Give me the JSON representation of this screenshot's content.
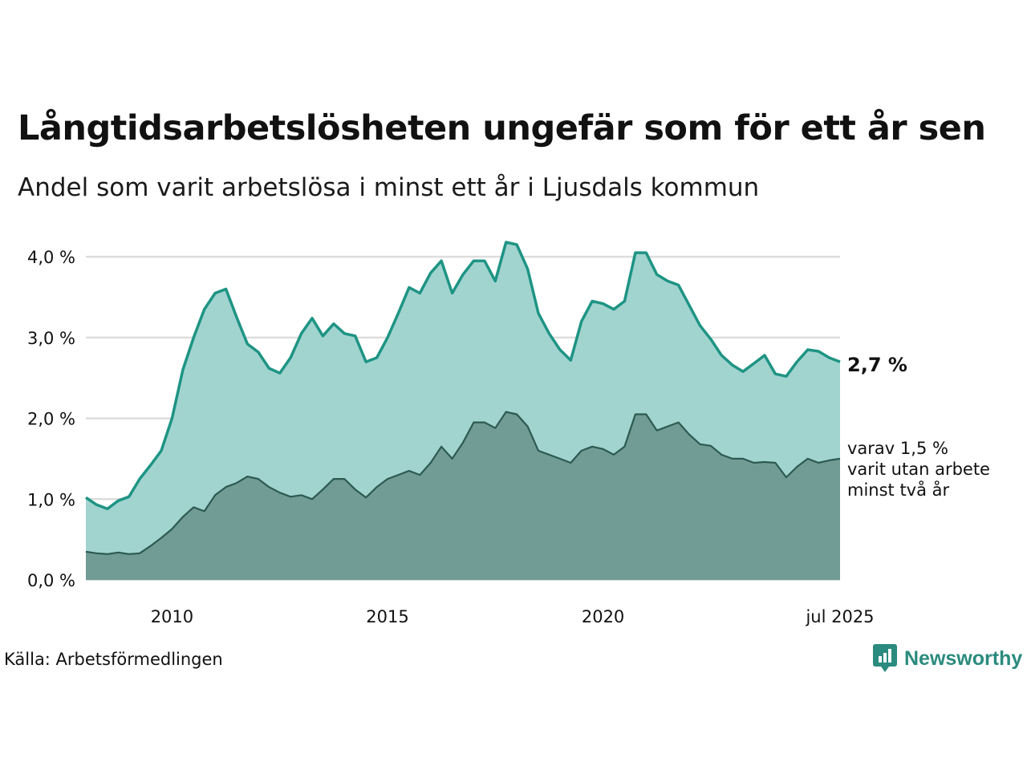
{
  "title": "Långtidsarbetslösheten ungefär som för ett år sen",
  "subtitle": "Andel som varit arbetslösa i minst ett år i Ljusdals kommun",
  "source": "Källa: Arbetsförmedlingen",
  "brand": "Newsworthy",
  "colors": {
    "total_line": "#1e9484",
    "total_fill": "#a2d4cf",
    "sub_line": "#2c5a52",
    "sub_fill": "#719c96",
    "grid": "#dddddd"
  },
  "chart_data": {
    "type": "area",
    "ylim": [
      0,
      4.2
    ],
    "yticks": [
      "0,0 %",
      "1,0 %",
      "2,0 %",
      "3,0 %",
      "4,0 %"
    ],
    "xticks": [
      "2010",
      "2015",
      "2020",
      "jul 2025"
    ],
    "total_label": "2,7 %",
    "sub_label": [
      "varav 1,5 %",
      "varit utan arbete",
      "minst två år"
    ],
    "series": [
      {
        "key": "total",
        "points": [
          [
            "2008-01",
            1.02
          ],
          [
            "2008-04",
            0.93
          ],
          [
            "2008-07",
            0.88
          ],
          [
            "2008-10",
            0.98
          ],
          [
            "2009-01",
            1.03
          ],
          [
            "2009-04",
            1.25
          ],
          [
            "2009-07",
            1.42
          ],
          [
            "2009-10",
            1.6
          ],
          [
            "2010-01",
            2.0
          ],
          [
            "2010-04",
            2.6
          ],
          [
            "2010-07",
            3.0
          ],
          [
            "2010-10",
            3.35
          ],
          [
            "2011-01",
            3.55
          ],
          [
            "2011-04",
            3.6
          ],
          [
            "2011-07",
            3.25
          ],
          [
            "2011-10",
            2.92
          ],
          [
            "2012-01",
            2.82
          ],
          [
            "2012-04",
            2.62
          ],
          [
            "2012-07",
            2.56
          ],
          [
            "2012-10",
            2.75
          ],
          [
            "2013-01",
            3.05
          ],
          [
            "2013-04",
            3.24
          ],
          [
            "2013-07",
            3.02
          ],
          [
            "2013-10",
            3.17
          ],
          [
            "2014-01",
            3.05
          ],
          [
            "2014-04",
            3.02
          ],
          [
            "2014-07",
            2.7
          ],
          [
            "2014-10",
            2.75
          ],
          [
            "2015-01",
            3.0
          ],
          [
            "2015-04",
            3.3
          ],
          [
            "2015-07",
            3.62
          ],
          [
            "2015-10",
            3.55
          ],
          [
            "2016-01",
            3.8
          ],
          [
            "2016-04",
            3.95
          ],
          [
            "2016-07",
            3.55
          ],
          [
            "2016-10",
            3.78
          ],
          [
            "2017-01",
            3.95
          ],
          [
            "2017-04",
            3.95
          ],
          [
            "2017-07",
            3.7
          ],
          [
            "2017-10",
            4.18
          ],
          [
            "2018-01",
            4.15
          ],
          [
            "2018-04",
            3.85
          ],
          [
            "2018-07",
            3.3
          ],
          [
            "2018-10",
            3.05
          ],
          [
            "2019-01",
            2.85
          ],
          [
            "2019-04",
            2.72
          ],
          [
            "2019-07",
            3.2
          ],
          [
            "2019-10",
            3.45
          ],
          [
            "2020-01",
            3.42
          ],
          [
            "2020-04",
            3.35
          ],
          [
            "2020-07",
            3.45
          ],
          [
            "2020-10",
            4.05
          ],
          [
            "2021-01",
            4.05
          ],
          [
            "2021-04",
            3.78
          ],
          [
            "2021-07",
            3.7
          ],
          [
            "2021-10",
            3.65
          ],
          [
            "2022-01",
            3.4
          ],
          [
            "2022-04",
            3.15
          ],
          [
            "2022-07",
            2.98
          ],
          [
            "2022-10",
            2.78
          ],
          [
            "2023-01",
            2.66
          ],
          [
            "2023-04",
            2.58
          ],
          [
            "2023-07",
            2.68
          ],
          [
            "2023-10",
            2.78
          ],
          [
            "2024-01",
            2.55
          ],
          [
            "2024-04",
            2.52
          ],
          [
            "2024-07",
            2.7
          ],
          [
            "2024-10",
            2.85
          ],
          [
            "2025-01",
            2.83
          ],
          [
            "2025-04",
            2.75
          ],
          [
            "2025-07",
            2.7
          ]
        ]
      },
      {
        "key": "sub",
        "points": [
          [
            "2008-01",
            0.35
          ],
          [
            "2008-04",
            0.33
          ],
          [
            "2008-07",
            0.32
          ],
          [
            "2008-10",
            0.34
          ],
          [
            "2009-01",
            0.32
          ],
          [
            "2009-04",
            0.33
          ],
          [
            "2009-07",
            0.42
          ],
          [
            "2009-10",
            0.52
          ],
          [
            "2010-01",
            0.63
          ],
          [
            "2010-04",
            0.78
          ],
          [
            "2010-07",
            0.9
          ],
          [
            "2010-10",
            0.85
          ],
          [
            "2011-01",
            1.05
          ],
          [
            "2011-04",
            1.15
          ],
          [
            "2011-07",
            1.2
          ],
          [
            "2011-10",
            1.28
          ],
          [
            "2012-01",
            1.25
          ],
          [
            "2012-04",
            1.15
          ],
          [
            "2012-07",
            1.08
          ],
          [
            "2012-10",
            1.03
          ],
          [
            "2013-01",
            1.05
          ],
          [
            "2013-04",
            1.0
          ],
          [
            "2013-07",
            1.12
          ],
          [
            "2013-10",
            1.25
          ],
          [
            "2014-01",
            1.25
          ],
          [
            "2014-04",
            1.12
          ],
          [
            "2014-07",
            1.02
          ],
          [
            "2014-10",
            1.15
          ],
          [
            "2015-01",
            1.25
          ],
          [
            "2015-04",
            1.3
          ],
          [
            "2015-07",
            1.35
          ],
          [
            "2015-10",
            1.3
          ],
          [
            "2016-01",
            1.45
          ],
          [
            "2016-04",
            1.65
          ],
          [
            "2016-07",
            1.5
          ],
          [
            "2016-10",
            1.7
          ],
          [
            "2017-01",
            1.95
          ],
          [
            "2017-04",
            1.95
          ],
          [
            "2017-07",
            1.88
          ],
          [
            "2017-10",
            2.08
          ],
          [
            "2018-01",
            2.05
          ],
          [
            "2018-04",
            1.9
          ],
          [
            "2018-07",
            1.6
          ],
          [
            "2018-10",
            1.55
          ],
          [
            "2019-01",
            1.5
          ],
          [
            "2019-04",
            1.45
          ],
          [
            "2019-07",
            1.6
          ],
          [
            "2019-10",
            1.65
          ],
          [
            "2020-01",
            1.62
          ],
          [
            "2020-04",
            1.55
          ],
          [
            "2020-07",
            1.65
          ],
          [
            "2020-10",
            2.05
          ],
          [
            "2021-01",
            2.05
          ],
          [
            "2021-04",
            1.85
          ],
          [
            "2021-07",
            1.9
          ],
          [
            "2021-10",
            1.95
          ],
          [
            "2022-01",
            1.8
          ],
          [
            "2022-04",
            1.68
          ],
          [
            "2022-07",
            1.66
          ],
          [
            "2022-10",
            1.55
          ],
          [
            "2023-01",
            1.5
          ],
          [
            "2023-04",
            1.5
          ],
          [
            "2023-07",
            1.45
          ],
          [
            "2023-10",
            1.46
          ],
          [
            "2024-01",
            1.45
          ],
          [
            "2024-04",
            1.27
          ],
          [
            "2024-07",
            1.4
          ],
          [
            "2024-10",
            1.5
          ],
          [
            "2025-01",
            1.45
          ],
          [
            "2025-04",
            1.48
          ],
          [
            "2025-07",
            1.5
          ]
        ]
      }
    ]
  }
}
